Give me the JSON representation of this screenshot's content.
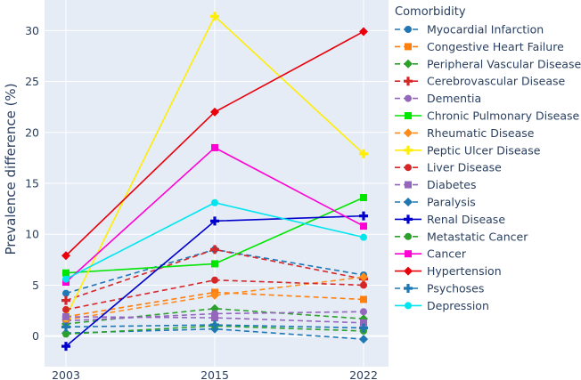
{
  "chart_data": {
    "type": "line",
    "title": "",
    "xlabel": "",
    "ylabel": "Prevalence difference (%)",
    "x": [
      2003,
      2015,
      2022
    ],
    "x_ticks": [
      "2003",
      "2015",
      "2022"
    ],
    "ylim": [
      -3,
      33
    ],
    "y_ticks": [
      0,
      5,
      10,
      15,
      20,
      25,
      30
    ],
    "legend_title": "Comorbidity",
    "legend_position": "right",
    "series": [
      {
        "name": "Myocardial Infarction",
        "values": [
          4.2,
          8.5,
          6.0
        ],
        "color": "#1f77b4",
        "dash": "dashed",
        "marker": "circle"
      },
      {
        "name": "Congestive Heart Failure",
        "values": [
          1.9,
          4.3,
          3.6
        ],
        "color": "#ff7f0e",
        "dash": "dashed",
        "marker": "square"
      },
      {
        "name": "Peripheral Vascular Disease",
        "values": [
          1.2,
          2.7,
          1.7
        ],
        "color": "#2ca02c",
        "dash": "dashed",
        "marker": "diamond"
      },
      {
        "name": "Cerebrovascular Disease",
        "values": [
          3.5,
          8.5,
          5.6
        ],
        "color": "#d62728",
        "dash": "dashed",
        "marker": "cross"
      },
      {
        "name": "Dementia",
        "values": [
          1.5,
          2.2,
          2.4
        ],
        "color": "#9467bd",
        "dash": "dashed",
        "marker": "circle"
      },
      {
        "name": "Chronic Pulmonary Disease",
        "values": [
          6.2,
          7.1,
          13.6
        ],
        "color": "#00e600",
        "dash": "solid",
        "marker": "square"
      },
      {
        "name": "Rheumatic Disease",
        "values": [
          1.6,
          4.0,
          5.8
        ],
        "color": "#ff8c1a",
        "dash": "dashed",
        "marker": "diamond"
      },
      {
        "name": "Peptic Ulcer Disease",
        "values": [
          1.9,
          31.4,
          17.9
        ],
        "color": "#ffee00",
        "dash": "solid",
        "marker": "cross"
      },
      {
        "name": "Liver Disease",
        "values": [
          2.6,
          5.5,
          5.0
        ],
        "color": "#d62728",
        "dash": "dashed",
        "marker": "circle"
      },
      {
        "name": "Diabetes",
        "values": [
          1.9,
          1.8,
          1.3
        ],
        "color": "#9467bd",
        "dash": "dashed",
        "marker": "square"
      },
      {
        "name": "Paralysis",
        "values": [
          0.3,
          0.7,
          -0.3
        ],
        "color": "#1f77b4",
        "dash": "dashed",
        "marker": "diamond"
      },
      {
        "name": "Renal Disease",
        "values": [
          -1.0,
          11.3,
          11.8
        ],
        "color": "#0000cc",
        "dash": "solid",
        "marker": "cross"
      },
      {
        "name": "Metastatic Cancer",
        "values": [
          0.2,
          1.0,
          0.5
        ],
        "color": "#2ca02c",
        "dash": "dashed",
        "marker": "circle"
      },
      {
        "name": "Cancer",
        "values": [
          5.3,
          18.5,
          10.8
        ],
        "color": "#ff00d4",
        "dash": "solid",
        "marker": "square"
      },
      {
        "name": "Hypertension",
        "values": [
          7.9,
          22.0,
          29.9
        ],
        "color": "#e8000b",
        "dash": "solid",
        "marker": "diamond"
      },
      {
        "name": "Psychoses",
        "values": [
          0.9,
          1.1,
          0.8
        ],
        "color": "#1f77b4",
        "dash": "dashed",
        "marker": "cross"
      },
      {
        "name": "Depression",
        "values": [
          5.6,
          13.1,
          9.7
        ],
        "color": "#00e5ee",
        "dash": "solid",
        "marker": "circle"
      }
    ]
  }
}
